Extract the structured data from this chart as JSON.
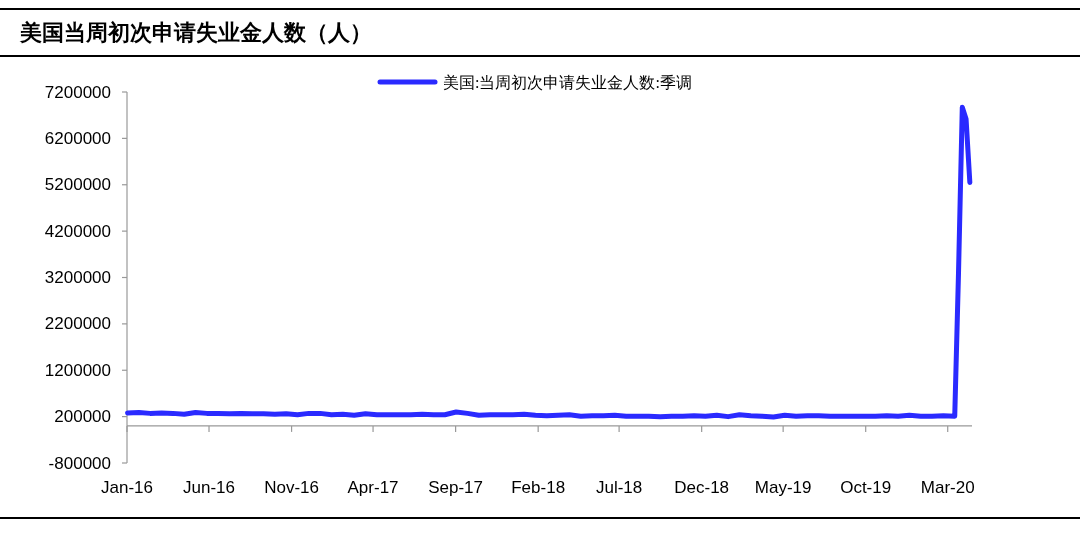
{
  "chart_data": {
    "type": "line",
    "title": "美国当周初次申请失业金人数（人）",
    "legend": "top",
    "xlim": [
      "2016-01-01",
      "2020-04-15"
    ],
    "ylim": [
      -800000,
      7200000
    ],
    "yticks": [
      -800000,
      200000,
      1200000,
      2200000,
      3200000,
      4200000,
      5200000,
      6200000,
      7200000
    ],
    "xticks": [
      {
        "value": "2016-01",
        "label": "Jan-16"
      },
      {
        "value": "2016-06",
        "label": "Jun-16"
      },
      {
        "value": "2016-11",
        "label": "Nov-16"
      },
      {
        "value": "2017-04",
        "label": "Apr-17"
      },
      {
        "value": "2017-09",
        "label": "Sep-17"
      },
      {
        "value": "2018-02",
        "label": "Feb-18"
      },
      {
        "value": "2018-07",
        "label": "Jul-18"
      },
      {
        "value": "2018-12",
        "label": "Dec-18"
      },
      {
        "value": "2019-05",
        "label": "May-19"
      },
      {
        "value": "2019-10",
        "label": "Oct-19"
      },
      {
        "value": "2020-03",
        "label": "Mar-20"
      }
    ],
    "x": [
      "2016-01-02",
      "2016-01-23",
      "2016-02-13",
      "2016-03-05",
      "2016-03-26",
      "2016-04-16",
      "2016-05-07",
      "2016-05-28",
      "2016-06-18",
      "2016-07-09",
      "2016-07-30",
      "2016-08-20",
      "2016-09-10",
      "2016-10-01",
      "2016-10-22",
      "2016-11-12",
      "2016-12-03",
      "2016-12-24",
      "2017-01-14",
      "2017-02-04",
      "2017-02-25",
      "2017-03-18",
      "2017-04-08",
      "2017-04-29",
      "2017-05-20",
      "2017-06-10",
      "2017-07-01",
      "2017-07-22",
      "2017-08-12",
      "2017-09-02",
      "2017-09-23",
      "2017-10-14",
      "2017-11-04",
      "2017-11-25",
      "2017-12-16",
      "2018-01-06",
      "2018-01-27",
      "2018-02-17",
      "2018-03-10",
      "2018-03-31",
      "2018-04-21",
      "2018-05-12",
      "2018-06-02",
      "2018-06-23",
      "2018-07-14",
      "2018-08-04",
      "2018-08-25",
      "2018-09-15",
      "2018-10-06",
      "2018-10-27",
      "2018-11-17",
      "2018-12-08",
      "2018-12-29",
      "2019-01-19",
      "2019-02-09",
      "2019-03-02",
      "2019-03-23",
      "2019-04-13",
      "2019-05-04",
      "2019-05-25",
      "2019-06-15",
      "2019-07-06",
      "2019-07-27",
      "2019-08-17",
      "2019-09-07",
      "2019-09-28",
      "2019-10-19",
      "2019-11-09",
      "2019-11-30",
      "2019-12-21",
      "2020-01-11",
      "2020-02-01",
      "2020-02-22",
      "2020-03-14",
      "2020-03-21",
      "2020-03-28",
      "2020-04-04",
      "2020-04-11"
    ],
    "series": [
      {
        "name": "美国:当周初次申请失业金人数:季调",
        "color": "#2a2aff",
        "values": [
          280000,
          290000,
          270000,
          280000,
          270000,
          250000,
          290000,
          270000,
          270000,
          260000,
          270000,
          260000,
          260000,
          250000,
          260000,
          240000,
          270000,
          270000,
          240000,
          250000,
          230000,
          260000,
          240000,
          240000,
          240000,
          240000,
          250000,
          240000,
          240000,
          300000,
          270000,
          230000,
          240000,
          240000,
          240000,
          250000,
          230000,
          220000,
          230000,
          240000,
          210000,
          220000,
          220000,
          230000,
          210000,
          210000,
          210000,
          200000,
          210000,
          210000,
          220000,
          210000,
          230000,
          200000,
          240000,
          220000,
          210000,
          190000,
          230000,
          210000,
          220000,
          220000,
          210000,
          210000,
          210000,
          210000,
          210000,
          220000,
          210000,
          230000,
          210000,
          210000,
          220000,
          210000,
          3300000,
          6870000,
          6620000,
          5250000
        ]
      }
    ]
  }
}
